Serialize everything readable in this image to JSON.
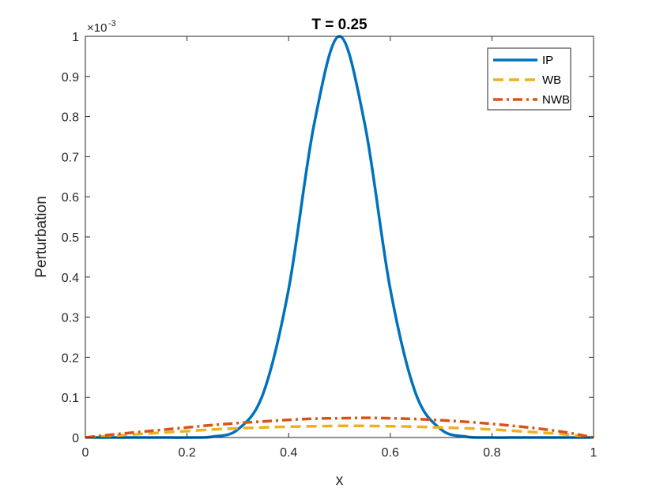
{
  "chart_data": {
    "type": "line",
    "title": "T = 0.25",
    "xlabel": "x",
    "ylabel": "Perturbation",
    "y_exponent_base": "×10",
    "y_exponent_power": "-3",
    "xlim": [
      0,
      1
    ],
    "ylim": [
      0,
      1
    ],
    "x_ticks": [
      0,
      0.2,
      0.4,
      0.6,
      0.8,
      1
    ],
    "x_tick_labels": [
      "0",
      "0.2",
      "0.4",
      "0.6",
      "0.8",
      "1"
    ],
    "y_ticks": [
      0,
      0.1,
      0.2,
      0.3,
      0.4,
      0.5,
      0.6,
      0.7,
      0.8,
      0.9,
      1
    ],
    "y_tick_labels": [
      "0",
      "0.1",
      "0.2",
      "0.3",
      "0.4",
      "0.5",
      "0.6",
      "0.7",
      "0.8",
      "0.9",
      "1"
    ],
    "grid": false,
    "legend_position": "top-right",
    "x": [
      0,
      0.05,
      0.1,
      0.15,
      0.2,
      0.25,
      0.3,
      0.35,
      0.4,
      0.45,
      0.5,
      0.55,
      0.6,
      0.65,
      0.7,
      0.75,
      0.8,
      0.85,
      0.9,
      0.95,
      1
    ],
    "series": [
      {
        "name": "IP",
        "color": "#0072BD",
        "style": "solid",
        "values": [
          0,
          0,
          0,
          0,
          0,
          0.002,
          0.02,
          0.11,
          0.37,
          0.78,
          1.0,
          0.78,
          0.37,
          0.11,
          0.02,
          0.002,
          0,
          0,
          0,
          0,
          0
        ]
      },
      {
        "name": "WB",
        "color": "#EDB120",
        "style": "dashed",
        "values": [
          0,
          0.004,
          0.008,
          0.012,
          0.016,
          0.02,
          0.023,
          0.025,
          0.027,
          0.028,
          0.029,
          0.029,
          0.028,
          0.027,
          0.025,
          0.023,
          0.02,
          0.016,
          0.012,
          0.007,
          0
        ]
      },
      {
        "name": "NWB",
        "color": "#D95319",
        "style": "dashdot",
        "values": [
          0,
          0.007,
          0.013,
          0.019,
          0.025,
          0.031,
          0.036,
          0.04,
          0.044,
          0.047,
          0.048,
          0.049,
          0.048,
          0.046,
          0.043,
          0.039,
          0.034,
          0.028,
          0.021,
          0.012,
          0
        ]
      }
    ]
  }
}
